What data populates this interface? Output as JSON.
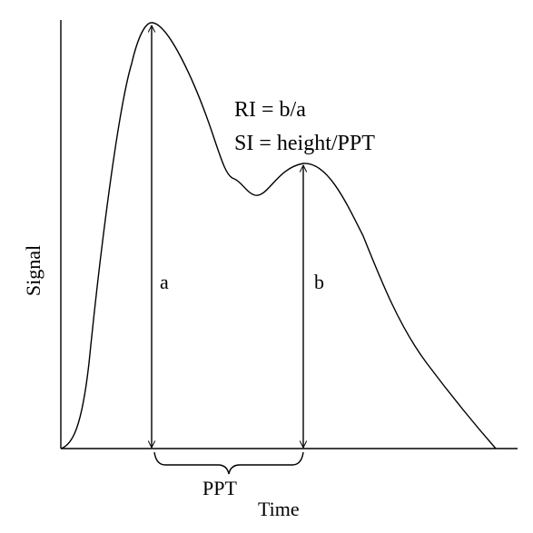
{
  "diagram": {
    "formula_ri": "RI = b/a",
    "formula_si": "SI = height/PPT",
    "label_a": "a",
    "label_b": "b",
    "label_ppt": "PPT",
    "y_axis_label": "Signal",
    "x_axis_label": "Time"
  },
  "colors": {
    "line": "#000000",
    "background": "#ffffff"
  }
}
